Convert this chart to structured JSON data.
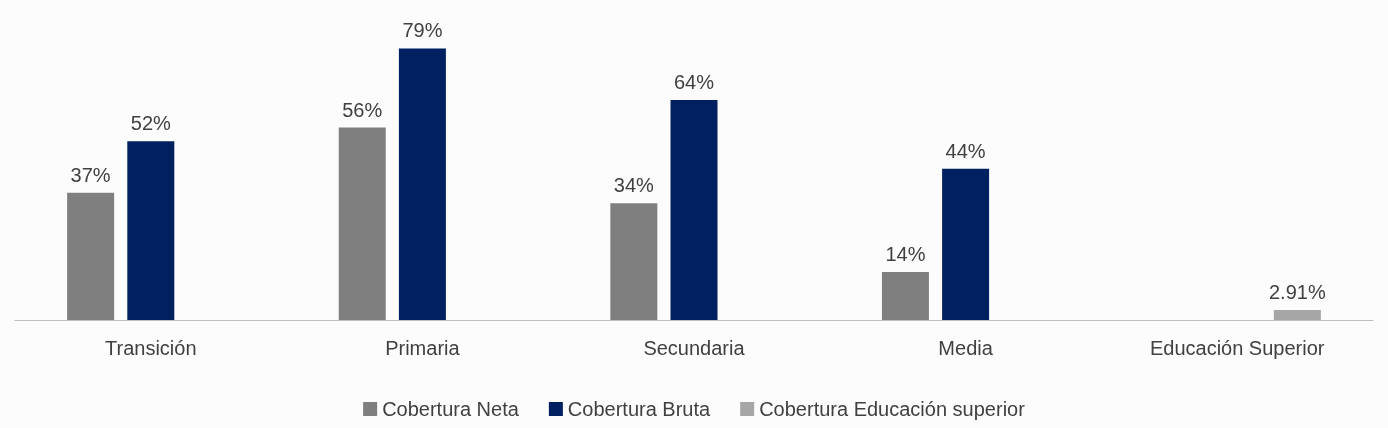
{
  "chart_data": {
    "type": "bar",
    "categories": [
      "Transición",
      "Primaria",
      "Secundaria",
      "Media",
      "Educación Superior"
    ],
    "series": [
      {
        "name": "Cobertura Neta",
        "color": "#7f7f7f",
        "values": [
          37,
          56,
          34,
          14,
          null
        ],
        "value_labels": [
          "37%",
          "56%",
          "34%",
          "14%",
          null
        ]
      },
      {
        "name": "Cobertura Bruta",
        "color": "#002060",
        "values": [
          52,
          79,
          64,
          44,
          null
        ],
        "value_labels": [
          "52%",
          "79%",
          "64%",
          "44%",
          null
        ]
      },
      {
        "name": "Cobertura Educación superior",
        "color": "#a6a6a6",
        "values": [
          null,
          null,
          null,
          null,
          2.91
        ],
        "value_labels": [
          null,
          null,
          null,
          null,
          "2.91%"
        ]
      }
    ],
    "legend": "bottom"
  }
}
